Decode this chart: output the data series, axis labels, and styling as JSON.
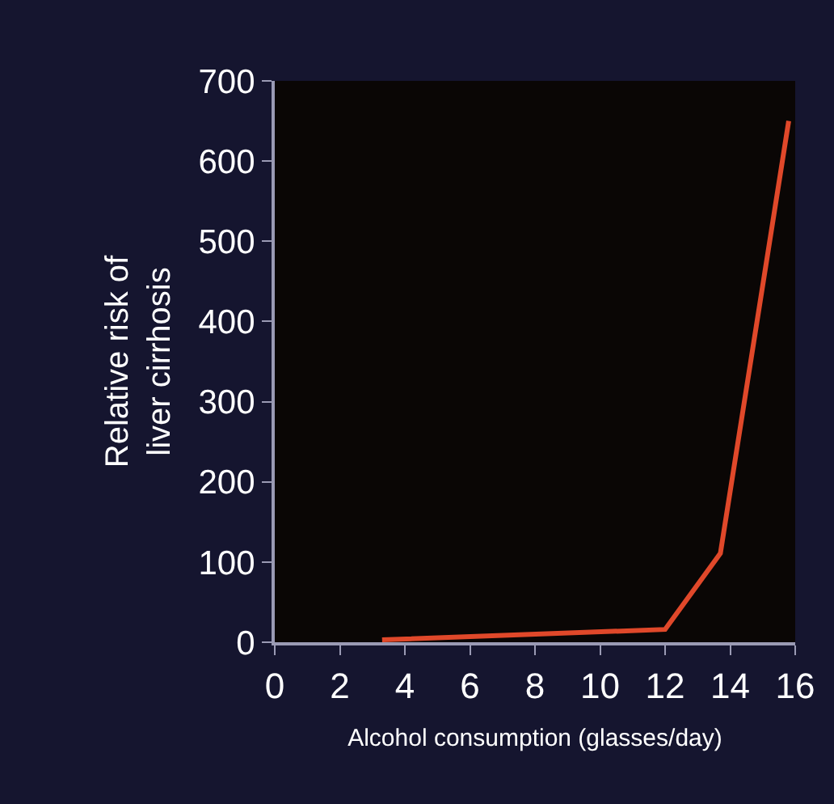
{
  "chart_data": {
    "type": "line",
    "xlabel": "Alcohol consumption (glasses/day)",
    "ylabel": "Relative risk of\nliver cirrhosis",
    "x": [
      3.3,
      12,
      13.7,
      15.8
    ],
    "series": [
      {
        "color": "#e0482a",
        "values": [
          3,
          16,
          111,
          650
        ]
      }
    ],
    "xlim": [
      0,
      16
    ],
    "xticks": [
      0,
      2,
      4,
      6,
      8,
      10,
      12,
      14,
      16
    ],
    "ylim": [
      0,
      700
    ],
    "yticks": [
      0,
      100,
      200,
      300,
      400,
      500,
      600,
      700
    ],
    "grid": false,
    "legend": false,
    "marker": "none",
    "line_style": "solid"
  }
}
